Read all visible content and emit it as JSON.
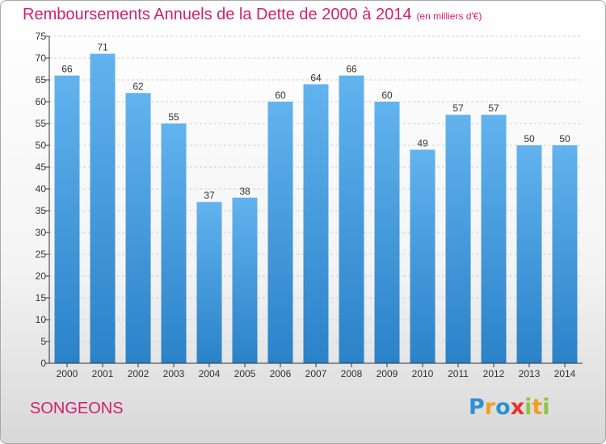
{
  "title": "Remboursements Annuels de la Dette de 2000 à 2014",
  "unit": "(en milliers d'€)",
  "commune": "SONGEONS",
  "logo": {
    "letters": [
      "P",
      "r",
      "o",
      "x",
      "i",
      "t",
      "i"
    ]
  },
  "colors": {
    "title": "#d11f6d",
    "bar_light": "#62b3ee",
    "bar_dark": "#2a82c8",
    "grid": "#cfcfcf",
    "axis": "#333333"
  },
  "chart_data": {
    "type": "bar",
    "title": "Remboursements Annuels de la Dette de 2000 à 2014",
    "ylabel": "(en milliers d'€)",
    "categories": [
      "2000",
      "2001",
      "2002",
      "2003",
      "2004",
      "2005",
      "2006",
      "2007",
      "2008",
      "2009",
      "2010",
      "2011",
      "2012",
      "2013",
      "2014"
    ],
    "values": [
      66,
      71,
      62,
      55,
      37,
      38,
      60,
      64,
      66,
      60,
      49,
      57,
      57,
      50,
      50
    ],
    "data_labels": [
      "66",
      "71",
      "62",
      "55",
      "37",
      "38",
      "60",
      "64",
      "66",
      "60",
      "49",
      "57",
      "57",
      "50",
      "50"
    ],
    "ylim": [
      0,
      75
    ],
    "yticks": [
      0,
      5,
      10,
      15,
      20,
      25,
      30,
      35,
      40,
      45,
      50,
      55,
      60,
      65,
      70,
      75
    ],
    "grid": true,
    "legend": "none"
  }
}
